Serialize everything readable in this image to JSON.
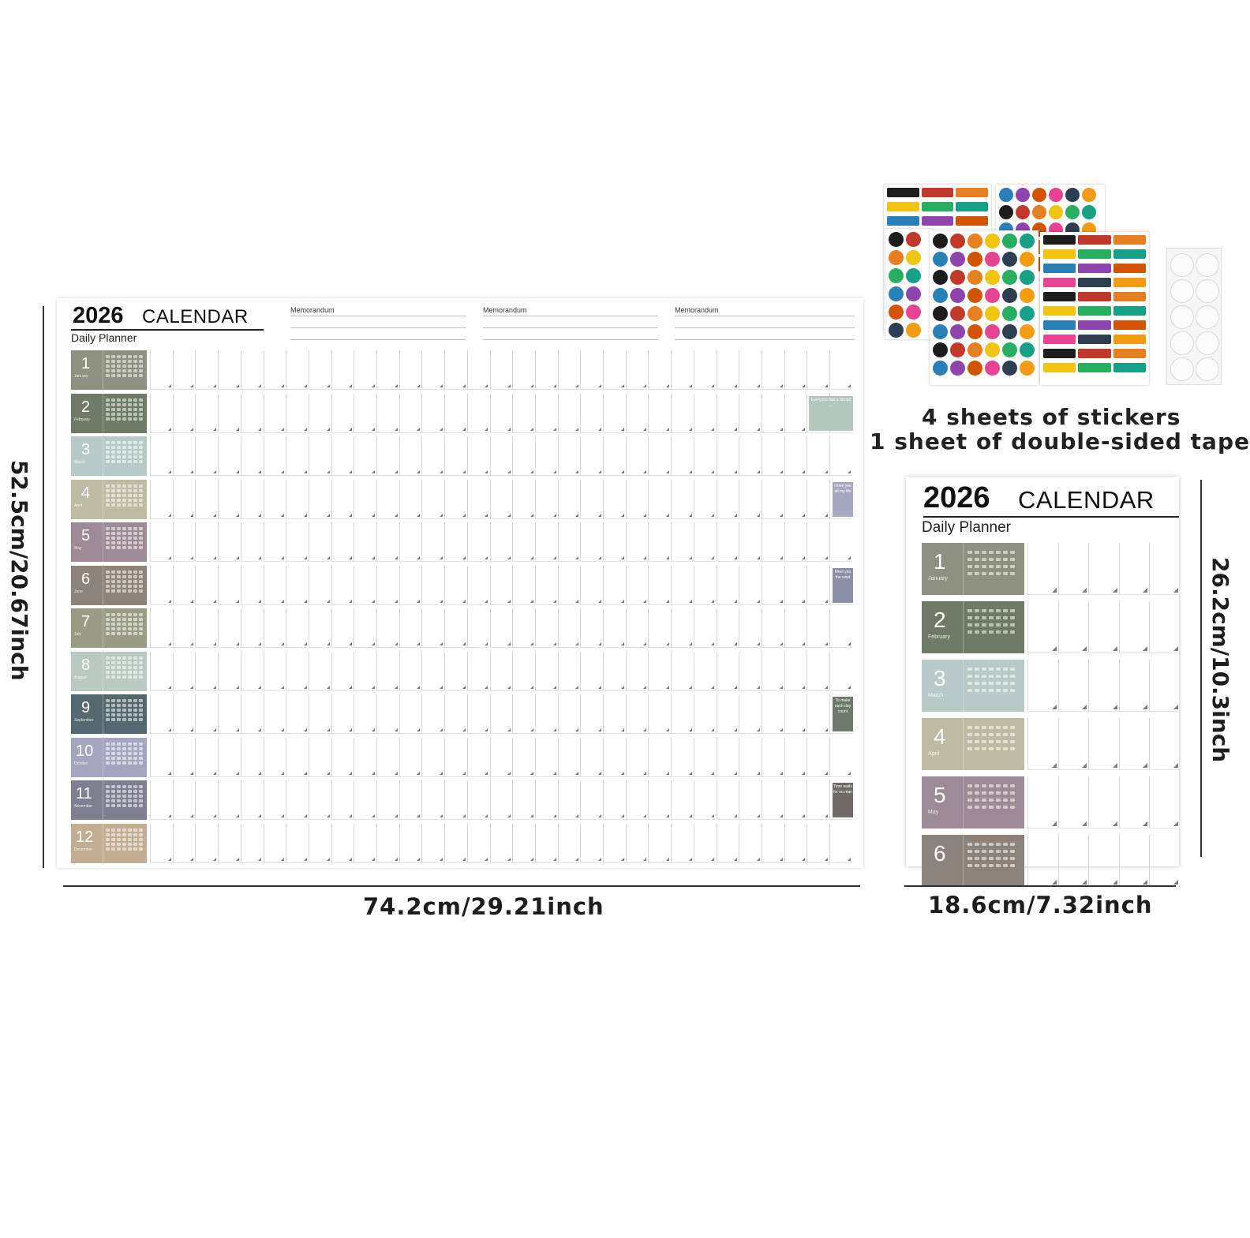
{
  "calendar": {
    "year": "2026",
    "title_word": "CALENDAR",
    "subtitle": "Daily Planner",
    "memo_labels": [
      "Memorandum",
      "Memorandum",
      "Memorandum"
    ],
    "months": [
      {
        "num": "1",
        "name": "January",
        "color": "#8e9180"
      },
      {
        "num": "2",
        "name": "February",
        "color": "#6f7b66"
      },
      {
        "num": "3",
        "name": "March",
        "color": "#b7cac8"
      },
      {
        "num": "4",
        "name": "April",
        "color": "#bdbba2"
      },
      {
        "num": "5",
        "name": "May",
        "color": "#9c8a95"
      },
      {
        "num": "6",
        "name": "June",
        "color": "#8d837a"
      },
      {
        "num": "7",
        "name": "July",
        "color": "#999b85"
      },
      {
        "num": "8",
        "name": "August",
        "color": "#b9c9bf"
      },
      {
        "num": "9",
        "name": "September",
        "color": "#546870"
      },
      {
        "num": "10",
        "name": "October",
        "color": "#a3a6be"
      },
      {
        "num": "11",
        "name": "November",
        "color": "#7f7f92"
      },
      {
        "num": "12",
        "name": "December",
        "color": "#c2ae93"
      }
    ],
    "quotes": [
      {
        "month_index": 1,
        "text": "Everyone has a dream ...",
        "color": "#b3c7bf"
      },
      {
        "month_index": 3,
        "text": "I love you all my life",
        "color": "#a7a9c3"
      },
      {
        "month_index": 5,
        "text": "Meet you the wind",
        "color": "#8a8ea6"
      },
      {
        "month_index": 8,
        "text": "To make each day count",
        "color": "#6d7a6b"
      },
      {
        "month_index": 10,
        "text": "Time waits for no man",
        "color": "#6e6a66"
      }
    ]
  },
  "small_calendar": {
    "year": "2026",
    "title_word": "CALENDAR",
    "subtitle": "Daily Planner",
    "months": [
      {
        "num": "1",
        "name": "January",
        "color": "#8e9180"
      },
      {
        "num": "2",
        "name": "February",
        "color": "#6f7b66"
      },
      {
        "num": "3",
        "name": "March",
        "color": "#b7cac8"
      },
      {
        "num": "4",
        "name": "April",
        "color": "#bdbba2"
      },
      {
        "num": "5",
        "name": "May",
        "color": "#9c8a95"
      },
      {
        "num": "6",
        "name": "",
        "color": "#8d837a"
      }
    ]
  },
  "dimensions": {
    "big_height": "52.5cm/20.67inch",
    "big_width": "74.2cm/29.21inch",
    "small_height": "26.2cm/10.3inch",
    "small_width": "18.6cm/7.32inch"
  },
  "accessories": {
    "stickers_caption": "4 sheets of stickers",
    "tape_caption": "1 sheet of double-sided tape",
    "sticker_colors": [
      "#1d1d1d",
      "#c0392b",
      "#e67e22",
      "#f1c40f",
      "#27ae60",
      "#16a085",
      "#2980b9",
      "#8e44ad",
      "#d35400",
      "#e84393",
      "#2c3e50",
      "#f39c12"
    ]
  }
}
